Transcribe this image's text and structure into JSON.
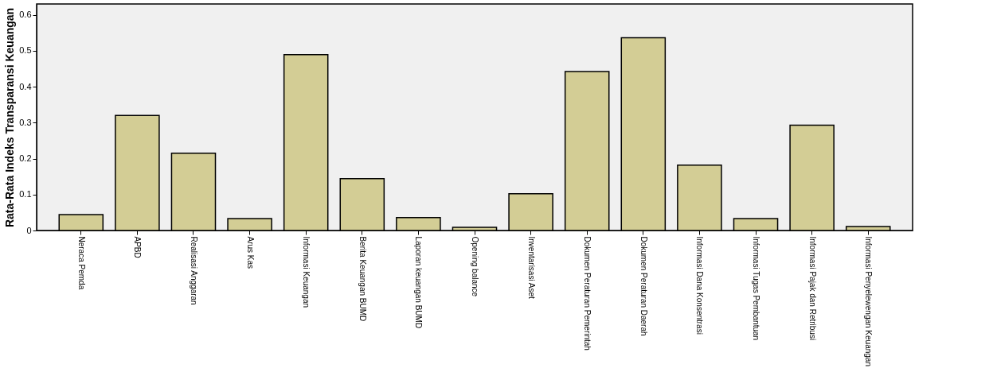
{
  "chart_data": {
    "type": "bar",
    "ylabel": "Rata-Rata Indeks Transparansi Keuangan",
    "categories": [
      "Neraca Pemda",
      "APBD",
      "Realisasi Anggaran",
      "Arus Kas",
      "Informasi Keuangan",
      "Berita Keuangan BUMD",
      "Laporan keuangan BUMD",
      "Opening balance",
      "Inventarisasi Aset",
      "Dokumen Peraturan Pemerintah",
      "Dokumen Peraturan Daerah",
      "Informasi Dana Konsentrasi",
      "Informasi Tugas Pembantuan",
      "Informasi Pajak dan Retribusi",
      "Informasi Penyelewengan Keuangan"
    ],
    "values": [
      0.044,
      0.32,
      0.215,
      0.033,
      0.489,
      0.144,
      0.036,
      0.009,
      0.102,
      0.442,
      0.536,
      0.182,
      0.033,
      0.293,
      0.011
    ],
    "color": "#d3cd95",
    "ylim": [
      0,
      0.63
    ],
    "yticks": [
      {
        "value": 0,
        "label": "0"
      },
      0.1,
      0.2,
      0.3,
      0.4,
      0.5,
      0.6
    ],
    "grid": false
  }
}
